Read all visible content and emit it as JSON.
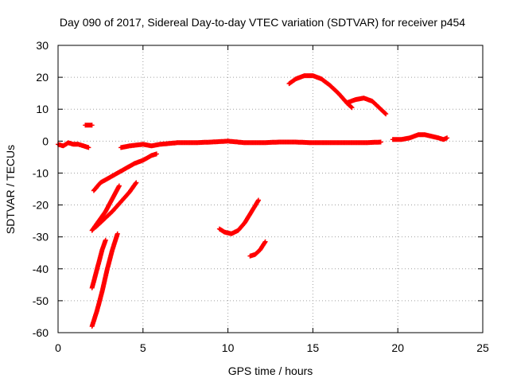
{
  "chart_data": {
    "type": "scatter",
    "title": "Day 090 of 2017, Sidereal Day-to-day VTEC variation (SDTVAR) for receiver p454",
    "xlabel": "GPS time / hours",
    "ylabel": "SDTVAR / TECUs",
    "xlim": [
      0,
      25
    ],
    "ylim": [
      -60,
      30
    ],
    "xticks": [
      "0",
      "5",
      "10",
      "15",
      "20",
      "25"
    ],
    "yticks": [
      "-60",
      "-50",
      "-40",
      "-30",
      "-20",
      "-10",
      "0",
      "10",
      "20",
      "30"
    ],
    "grid": true,
    "marker": "+",
    "color": "#ff0000",
    "series": [
      {
        "points": [
          [
            0,
            -1
          ],
          [
            0.3,
            -1.5
          ],
          [
            0.6,
            -0.5
          ],
          [
            0.9,
            -1
          ],
          [
            1.2,
            -1
          ],
          [
            1.5,
            -1.5
          ],
          [
            1.8,
            -2
          ]
        ]
      },
      {
        "points": [
          [
            1.6,
            5
          ],
          [
            1.8,
            5
          ],
          [
            2.0,
            5
          ]
        ]
      },
      {
        "points": [
          [
            2.1,
            -15.5
          ],
          [
            2.5,
            -13
          ],
          [
            3,
            -11.5
          ],
          [
            3.5,
            -10
          ],
          [
            4,
            -8.5
          ],
          [
            4.5,
            -7
          ],
          [
            5,
            -6
          ],
          [
            5.5,
            -4.5
          ],
          [
            5.8,
            -4
          ]
        ]
      },
      {
        "points": [
          [
            3.7,
            -2
          ],
          [
            4.2,
            -1.5
          ],
          [
            5,
            -1
          ],
          [
            5.5,
            -1.5
          ],
          [
            6,
            -1
          ],
          [
            7,
            -0.5
          ],
          [
            8,
            -0.5
          ],
          [
            9,
            -0.3
          ],
          [
            10,
            0
          ],
          [
            11,
            -0.5
          ],
          [
            12,
            -0.5
          ],
          [
            13,
            -0.3
          ],
          [
            14,
            -0.3
          ],
          [
            15,
            -0.5
          ],
          [
            16,
            -0.5
          ],
          [
            17,
            -0.5
          ],
          [
            18,
            -0.5
          ],
          [
            19,
            -0.3
          ]
        ]
      },
      {
        "points": [
          [
            19.7,
            0.5
          ],
          [
            20.2,
            0.5
          ],
          [
            20.7,
            1
          ],
          [
            21.2,
            2
          ],
          [
            21.6,
            2
          ],
          [
            22,
            1.5
          ],
          [
            22.4,
            1
          ],
          [
            22.7,
            0.5
          ],
          [
            22.9,
            1
          ]
        ]
      },
      {
        "points": [
          [
            13.6,
            18
          ],
          [
            14,
            19.5
          ],
          [
            14.5,
            20.5
          ],
          [
            15,
            20.5
          ],
          [
            15.5,
            19.5
          ],
          [
            16,
            17.5
          ],
          [
            16.5,
            15
          ],
          [
            17,
            12
          ],
          [
            17.3,
            10.5
          ]
        ]
      },
      {
        "points": [
          [
            17,
            12
          ],
          [
            17.5,
            13
          ],
          [
            18,
            13.5
          ],
          [
            18.5,
            12.5
          ],
          [
            19,
            10
          ],
          [
            19.3,
            8.5
          ]
        ]
      },
      {
        "points": [
          [
            2,
            -28
          ],
          [
            2.4,
            -25
          ],
          [
            2.8,
            -22
          ],
          [
            3.1,
            -19
          ],
          [
            3.4,
            -16
          ],
          [
            3.6,
            -14
          ]
        ]
      },
      {
        "points": [
          [
            2.2,
            -27
          ],
          [
            2.7,
            -24.5
          ],
          [
            3.2,
            -22
          ],
          [
            3.7,
            -19
          ],
          [
            4.2,
            -16
          ],
          [
            4.6,
            -13
          ]
        ]
      },
      {
        "points": [
          [
            2,
            -46
          ],
          [
            2.2,
            -42
          ],
          [
            2.4,
            -38
          ],
          [
            2.6,
            -34
          ],
          [
            2.8,
            -31
          ]
        ]
      },
      {
        "points": [
          [
            2,
            -58
          ],
          [
            2.3,
            -53
          ],
          [
            2.6,
            -47
          ],
          [
            2.9,
            -40
          ],
          [
            3.2,
            -34
          ],
          [
            3.5,
            -29
          ]
        ]
      },
      {
        "points": [
          [
            9.5,
            -27.5
          ],
          [
            9.8,
            -28.5
          ],
          [
            10.2,
            -29
          ],
          [
            10.6,
            -28
          ],
          [
            11,
            -25.5
          ],
          [
            11.4,
            -22
          ],
          [
            11.8,
            -18.5
          ]
        ]
      },
      {
        "points": [
          [
            11.3,
            -36
          ],
          [
            11.6,
            -35.5
          ],
          [
            11.9,
            -34
          ],
          [
            12.2,
            -31.5
          ]
        ]
      }
    ]
  }
}
